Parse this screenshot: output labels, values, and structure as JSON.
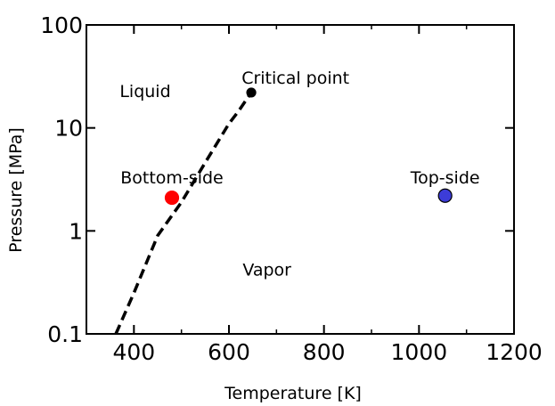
{
  "chart_data": {
    "type": "scatter",
    "title": "",
    "xlabel": "Temperature [K]",
    "ylabel": "Pressure [MPa]",
    "xlim": [
      300,
      1200
    ],
    "ylim": [
      0.1,
      100
    ],
    "yscale": "log",
    "xticks": [
      400,
      600,
      800,
      1000,
      1200
    ],
    "xtick_labels": [
      "400",
      "600",
      "800",
      "1000",
      "1200"
    ],
    "yticks": [
      0.1,
      1,
      10,
      100
    ],
    "ytick_labels": [
      "0.1",
      "1",
      "10",
      "100"
    ],
    "grid": false,
    "legend": "none",
    "series": [
      {
        "style": "dashed-line",
        "color": "#000000",
        "x": [
          362,
          400,
          450,
          500,
          550,
          600,
          620,
          647
        ],
        "y": [
          0.1,
          0.25,
          0.9,
          1.9,
          4.6,
          11.0,
          14.5,
          22.06
        ]
      },
      {
        "style": "point",
        "color": "#000000",
        "x": [
          647
        ],
        "y": [
          22.06
        ]
      },
      {
        "style": "point",
        "color": "#ff0000",
        "edge_color": "#ff0000",
        "x": [
          480
        ],
        "y": [
          2.1
        ]
      },
      {
        "style": "point",
        "color": "#3c3cd8",
        "edge_color": "#000000",
        "x": [
          1055
        ],
        "y": [
          2.2
        ]
      }
    ],
    "annotations": [
      {
        "text": "Critical point",
        "x": 740,
        "y": 27,
        "anchor": "middle"
      },
      {
        "text": "Liquid",
        "x": 370,
        "y": 20,
        "anchor": "start"
      },
      {
        "text": "Bottom-side",
        "x": 480,
        "y": 2.9,
        "anchor": "middle"
      },
      {
        "text": "Top-side",
        "x": 1055,
        "y": 2.9,
        "anchor": "middle"
      },
      {
        "text": "Vapor",
        "x": 680,
        "y": 0.37,
        "anchor": "middle"
      }
    ]
  }
}
